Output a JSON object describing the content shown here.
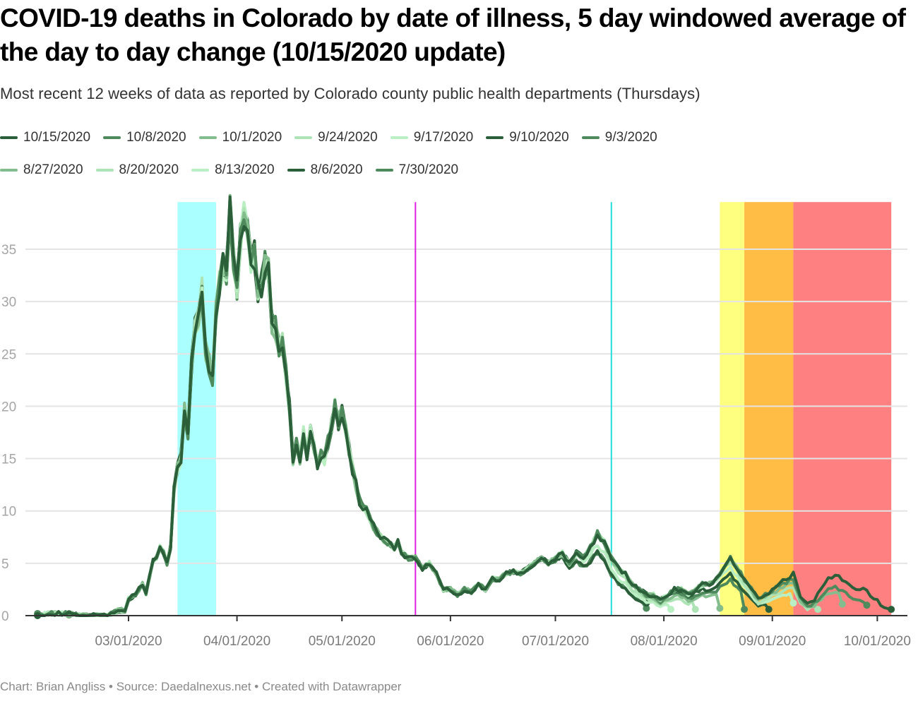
{
  "chart_data": {
    "type": "line",
    "title": "COVID-19 deaths in Colorado by date of illness, 5 day windowed average of the day to day change (10/15/2020 update)",
    "subtitle": "Most recent 12 weeks of data as reported by Colorado county public health departments (Thursdays)",
    "footer": "Chart: Brian Angliss • Source: Daedalnexus.net • Created with Datawrapper",
    "xlabel": "",
    "ylabel": "",
    "x_start_date": "2020-02-04",
    "x_range_days": [
      -6,
      247
    ],
    "ylim": [
      0,
      39.5
    ],
    "yticks": [
      0,
      5,
      10,
      15,
      20,
      25,
      30,
      35
    ],
    "ytick_labels": [
      "0",
      "5",
      "10",
      "15",
      "20",
      "25",
      "30",
      "35"
    ],
    "xticks": [
      {
        "day": 26,
        "label": "03/01/2020"
      },
      {
        "day": 57,
        "label": "04/01/2020"
      },
      {
        "day": 87,
        "label": "05/01/2020"
      },
      {
        "day": 118,
        "label": "06/01/2020"
      },
      {
        "day": 148,
        "label": "07/01/2020"
      },
      {
        "day": 179,
        "label": "08/01/2020"
      },
      {
        "day": 210,
        "label": "09/01/2020"
      },
      {
        "day": 240,
        "label": "10/01/2020"
      }
    ],
    "grid": true,
    "legend_position": "top",
    "bands": [
      {
        "from_day": 40,
        "to_day": 51,
        "color": "#aaffff",
        "name": "cyan-band"
      },
      {
        "from_day": 195,
        "to_day": 202,
        "color": "#ffff7f",
        "name": "yellow-band"
      },
      {
        "from_day": 202,
        "to_day": 216,
        "color": "#ffbd45",
        "name": "orange-band"
      },
      {
        "from_day": 216,
        "to_day": 244,
        "color": "#ff8080",
        "name": "red-band"
      }
    ],
    "vlines": [
      {
        "day": 108,
        "color": "#e020e0",
        "name": "magenta-line"
      },
      {
        "day": 164,
        "color": "#22dddd",
        "name": "cyan-line"
      }
    ],
    "base_curve": [
      [
        0,
        0
      ],
      [
        3,
        0.2
      ],
      [
        8,
        0.2
      ],
      [
        12,
        0
      ],
      [
        18,
        0
      ],
      [
        20,
        0
      ],
      [
        23,
        0.5
      ],
      [
        25,
        0.5
      ],
      [
        26,
        1.6
      ],
      [
        28,
        2.0
      ],
      [
        30,
        3.0
      ],
      [
        31,
        2.2
      ],
      [
        33,
        5.2
      ],
      [
        34,
        5.5
      ],
      [
        35,
        6.5
      ],
      [
        36,
        6.0
      ],
      [
        37,
        5.0
      ],
      [
        38,
        6.5
      ],
      [
        39,
        12.0
      ],
      [
        40,
        14.0
      ],
      [
        41,
        15.0
      ],
      [
        42,
        19.5
      ],
      [
        43,
        17.5
      ],
      [
        44,
        24.0
      ],
      [
        45,
        27.5
      ],
      [
        46,
        28.5
      ],
      [
        47,
        31.0
      ],
      [
        48,
        25.5
      ],
      [
        49,
        24.0
      ],
      [
        50,
        22.5
      ],
      [
        51,
        29.0
      ],
      [
        52,
        32.0
      ],
      [
        53,
        33.5
      ],
      [
        54,
        33.0
      ],
      [
        55,
        39.0
      ],
      [
        56,
        34.0
      ],
      [
        57,
        31.5
      ],
      [
        58,
        36.0
      ],
      [
        59,
        38.5
      ],
      [
        60,
        37.5
      ],
      [
        61,
        34.0
      ],
      [
        62,
        34.5
      ],
      [
        63,
        31.0
      ],
      [
        64,
        31.5
      ],
      [
        65,
        33.5
      ],
      [
        66,
        33.0
      ],
      [
        67,
        28.0
      ],
      [
        68,
        27.5
      ],
      [
        69,
        25.5
      ],
      [
        70,
        26.0
      ],
      [
        71,
        23.0
      ],
      [
        72,
        20.0
      ],
      [
        73,
        15.0
      ],
      [
        74,
        16.5
      ],
      [
        75,
        15.0
      ],
      [
        76,
        17.5
      ],
      [
        77,
        15.5
      ],
      [
        78,
        17.5
      ],
      [
        79,
        16.0
      ],
      [
        80,
        14.5
      ],
      [
        81,
        15.5
      ],
      [
        82,
        15.0
      ],
      [
        83,
        16.5
      ],
      [
        84,
        18.0
      ],
      [
        85,
        20.0
      ],
      [
        86,
        18.5
      ],
      [
        87,
        19.5
      ],
      [
        88,
        18.0
      ],
      [
        89,
        16.0
      ],
      [
        90,
        14.0
      ],
      [
        92,
        11.0
      ],
      [
        94,
        10.0
      ],
      [
        96,
        8.5
      ],
      [
        98,
        7.5
      ],
      [
        100,
        7.0
      ],
      [
        102,
        6.5
      ],
      [
        103,
        7.0
      ],
      [
        104,
        6.0
      ],
      [
        106,
        5.5
      ],
      [
        108,
        5.5
      ],
      [
        110,
        4.5
      ],
      [
        112,
        5.0
      ],
      [
        114,
        4.0
      ],
      [
        116,
        2.5
      ],
      [
        118,
        2.5
      ],
      [
        120,
        2.0
      ],
      [
        122,
        2.5
      ],
      [
        124,
        2.3
      ],
      [
        126,
        3.0
      ],
      [
        128,
        2.5
      ],
      [
        130,
        3.5
      ],
      [
        132,
        3.5
      ],
      [
        134,
        4.0
      ],
      [
        136,
        4.2
      ],
      [
        138,
        4.0
      ],
      [
        140,
        4.5
      ],
      [
        142,
        5.0
      ],
      [
        144,
        5.5
      ],
      [
        146,
        5.0
      ],
      [
        148,
        5.5
      ],
      [
        150,
        6.0
      ],
      [
        152,
        5.0
      ],
      [
        154,
        6.0
      ],
      [
        156,
        5.5
      ],
      [
        158,
        6.5
      ],
      [
        160,
        7.8
      ],
      [
        162,
        7.0
      ],
      [
        164,
        5.5
      ],
      [
        166,
        4.5
      ],
      [
        168,
        4.0
      ],
      [
        170,
        3.0
      ],
      [
        172,
        2.5
      ],
      [
        174,
        2.0
      ],
      [
        176,
        2.0
      ],
      [
        178,
        1.5
      ],
      [
        180,
        2.0
      ],
      [
        182,
        2.5
      ],
      [
        184,
        2.5
      ],
      [
        186,
        2.0
      ],
      [
        188,
        2.5
      ],
      [
        190,
        3.0
      ],
      [
        192,
        3.0
      ],
      [
        194,
        3.5
      ],
      [
        196,
        4.5
      ],
      [
        198,
        5.5
      ],
      [
        200,
        4.5
      ],
      [
        202,
        3.5
      ],
      [
        204,
        2.5
      ],
      [
        206,
        1.5
      ],
      [
        208,
        2.0
      ],
      [
        210,
        2.5
      ],
      [
        212,
        3.0
      ],
      [
        214,
        3.5
      ],
      [
        216,
        4.0
      ],
      [
        218,
        2.0
      ],
      [
        220,
        1.0
      ],
      [
        222,
        1.5
      ],
      [
        224,
        2.5
      ],
      [
        226,
        3.5
      ],
      [
        228,
        4.0
      ],
      [
        230,
        3.5
      ],
      [
        232,
        3.0
      ],
      [
        234,
        2.5
      ],
      [
        236,
        2.5
      ],
      [
        238,
        2.0
      ],
      [
        240,
        1.5
      ],
      [
        242,
        0.8
      ],
      [
        244,
        0.6
      ]
    ],
    "series": [
      {
        "name": "10/15/2020",
        "color": "#2b5f3a",
        "end_day": 244,
        "end_value": 0.6,
        "offset_seed": 0
      },
      {
        "name": "10/8/2020",
        "color": "#4e8a5c",
        "end_day": 237,
        "end_value": 1.0,
        "offset_seed": 1
      },
      {
        "name": "10/1/2020",
        "color": "#84bd8d",
        "end_day": 230,
        "end_value": 1.1,
        "offset_seed": 2
      },
      {
        "name": "9/24/2020",
        "color": "#aee3b5",
        "end_day": 223,
        "end_value": 0.6,
        "offset_seed": 3
      },
      {
        "name": "9/17/2020",
        "color": "#b9efc3",
        "end_day": 216,
        "end_value": 1.2,
        "offset_seed": 4
      },
      {
        "name": "9/10/2020",
        "color": "#2b5f3a",
        "end_day": 209,
        "end_value": 0.6,
        "offset_seed": 5
      },
      {
        "name": "9/3/2020",
        "color": "#4e8a5c",
        "end_day": 202,
        "end_value": 0.6,
        "offset_seed": 6
      },
      {
        "name": "8/27/2020",
        "color": "#84bd8d",
        "end_day": 195,
        "end_value": 0.7,
        "offset_seed": 7
      },
      {
        "name": "8/20/2020",
        "color": "#aee3b5",
        "end_day": 188,
        "end_value": 0.6,
        "offset_seed": 8
      },
      {
        "name": "8/13/2020",
        "color": "#b9efc3",
        "end_day": 181,
        "end_value": 0.6,
        "offset_seed": 9
      },
      {
        "name": "8/6/2020",
        "color": "#2b5f3a",
        "end_day": 174,
        "end_value": 1.2,
        "offset_seed": 10
      },
      {
        "name": "7/30/2020",
        "color": "#4e8a5c",
        "end_day": 174,
        "end_value": 0.7,
        "offset_seed": 11
      }
    ]
  },
  "legend_rows": [
    [
      "10/15/2020",
      "10/8/2020",
      "10/1/2020",
      "9/24/2020",
      "9/17/2020",
      "9/10/2020",
      "9/3/2020"
    ],
    [
      "8/27/2020",
      "8/20/2020",
      "8/13/2020",
      "8/6/2020",
      "7/30/2020"
    ]
  ]
}
